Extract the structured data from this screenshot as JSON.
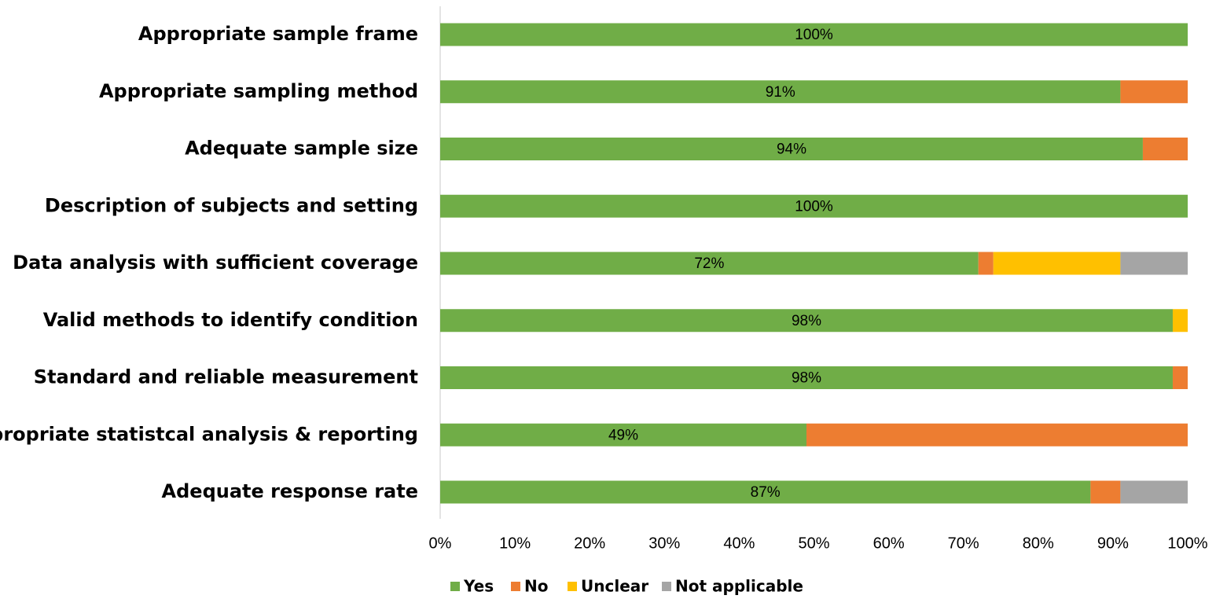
{
  "chart_data": {
    "type": "stacked-bar-horizontal",
    "categories": [
      "Appropriate sample frame",
      "Appropriate sampling method",
      "Adequate sample size",
      "Description of subjects and setting",
      "Data analysis with sufficient coverage",
      "Valid methods to identify condition",
      "Standard and reliable measurement",
      "Appropriate statistcal analysis & reporting",
      "Adequate response rate"
    ],
    "series": [
      {
        "name": "Yes",
        "color": "#70ad47",
        "values": [
          100,
          91,
          94,
          100,
          72,
          98,
          98,
          49,
          87
        ],
        "value_labels": [
          "100%",
          "91%",
          "94%",
          "100%",
          "72%",
          "98%",
          "98%",
          "49%",
          "87%"
        ]
      },
      {
        "name": "No",
        "color": "#ed7d31",
        "values": [
          0,
          9,
          6,
          0,
          2,
          0,
          2,
          51,
          4
        ]
      },
      {
        "name": "Unclear",
        "color": "#ffc000",
        "values": [
          0,
          0,
          0,
          0,
          17,
          2,
          0,
          0,
          0
        ]
      },
      {
        "name": "Not applicable",
        "color": "#a5a5a5",
        "values": [
          0,
          0,
          0,
          0,
          9,
          0,
          0,
          0,
          9
        ]
      }
    ],
    "xlim": [
      0,
      100
    ],
    "xticks": [
      {
        "value": 0,
        "label": "0%"
      },
      {
        "value": 10,
        "label": "10%"
      },
      {
        "value": 20,
        "label": "20%"
      },
      {
        "value": 30,
        "label": "30%"
      },
      {
        "value": 40,
        "label": "40%"
      },
      {
        "value": 50,
        "label": "50%"
      },
      {
        "value": 60,
        "label": "60%"
      },
      {
        "value": 70,
        "label": "70%"
      },
      {
        "value": 80,
        "label": "80%"
      },
      {
        "value": 90,
        "label": "90%"
      },
      {
        "value": 100,
        "label": "100%"
      }
    ],
    "legend": "bottom"
  }
}
